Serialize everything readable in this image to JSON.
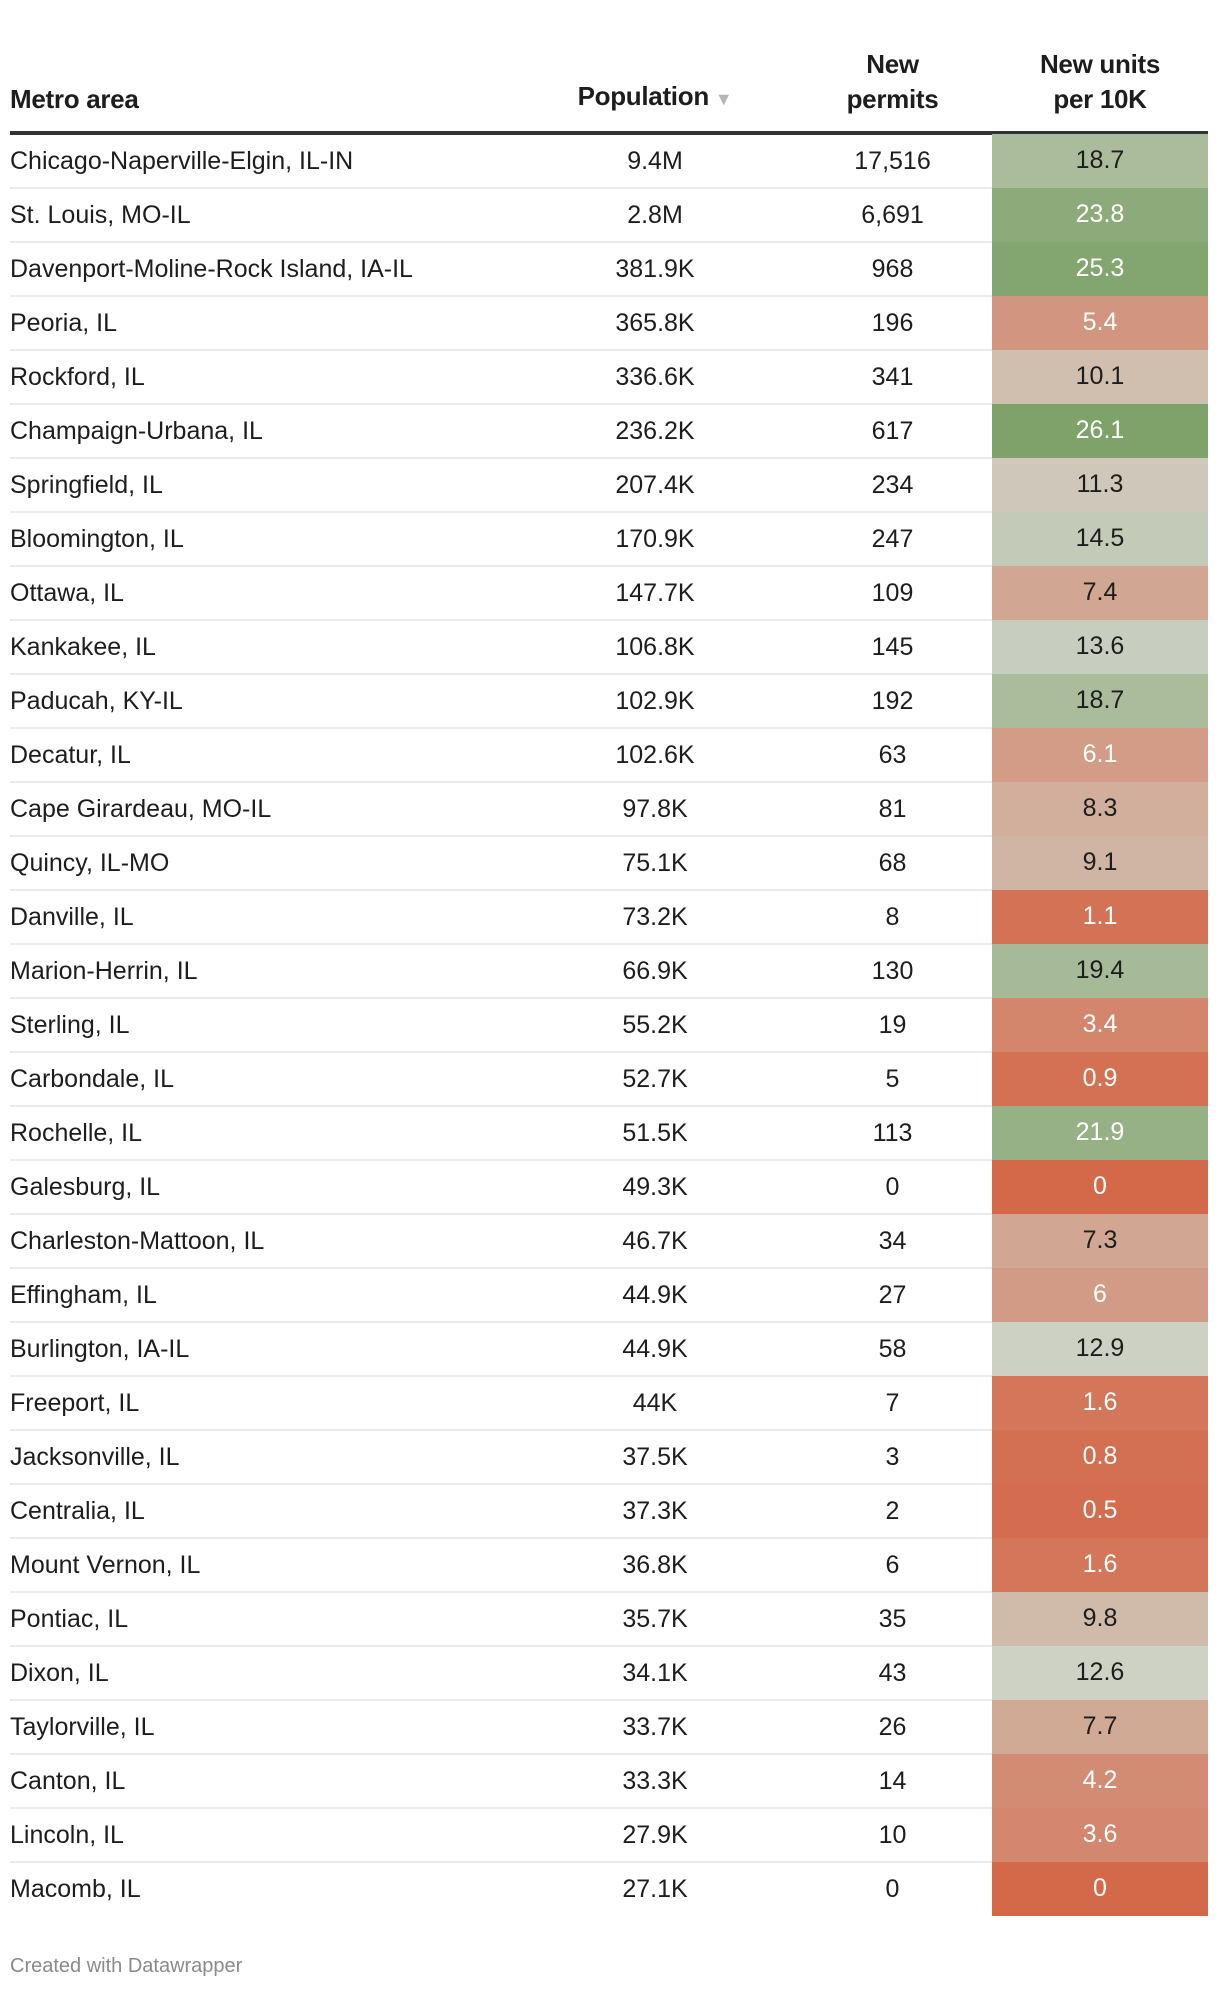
{
  "chart_data": {
    "type": "table",
    "columns": [
      "Metro area",
      "Population",
      "New permits",
      "New units per 10K"
    ],
    "header": {
      "metro": "Metro area",
      "population": "Population",
      "permits": "New permits",
      "units": "New units per 10K"
    },
    "sort": {
      "column": "Population",
      "direction": "descending",
      "icon": "sort-down-triangle"
    },
    "color_scale": {
      "column": "New units per 10K",
      "stops": [
        [
          0,
          "#d4694a"
        ],
        [
          12.5,
          "#cfd2c6"
        ],
        [
          26.1,
          "#7ea26a"
        ]
      ]
    },
    "rows": [
      {
        "metro": "Chicago-Naperville-Elgin, IL-IN",
        "population": "9.4M",
        "permits": "17,516",
        "units": "18.7"
      },
      {
        "metro": "St. Louis, MO-IL",
        "population": "2.8M",
        "permits": "6,691",
        "units": "23.8"
      },
      {
        "metro": "Davenport-Moline-Rock Island, IA-IL",
        "population": "381.9K",
        "permits": "968",
        "units": "25.3"
      },
      {
        "metro": "Peoria, IL",
        "population": "365.8K",
        "permits": "196",
        "units": "5.4"
      },
      {
        "metro": "Rockford, IL",
        "population": "336.6K",
        "permits": "341",
        "units": "10.1"
      },
      {
        "metro": "Champaign-Urbana, IL",
        "population": "236.2K",
        "permits": "617",
        "units": "26.1"
      },
      {
        "metro": "Springfield, IL",
        "population": "207.4K",
        "permits": "234",
        "units": "11.3"
      },
      {
        "metro": "Bloomington, IL",
        "population": "170.9K",
        "permits": "247",
        "units": "14.5"
      },
      {
        "metro": "Ottawa, IL",
        "population": "147.7K",
        "permits": "109",
        "units": "7.4"
      },
      {
        "metro": "Kankakee, IL",
        "population": "106.8K",
        "permits": "145",
        "units": "13.6"
      },
      {
        "metro": "Paducah, KY-IL",
        "population": "102.9K",
        "permits": "192",
        "units": "18.7"
      },
      {
        "metro": "Decatur, IL",
        "population": "102.6K",
        "permits": "63",
        "units": "6.1"
      },
      {
        "metro": "Cape Girardeau, MO-IL",
        "population": "97.8K",
        "permits": "81",
        "units": "8.3"
      },
      {
        "metro": "Quincy, IL-MO",
        "population": "75.1K",
        "permits": "68",
        "units": "9.1"
      },
      {
        "metro": "Danville, IL",
        "population": "73.2K",
        "permits": "8",
        "units": "1.1"
      },
      {
        "metro": "Marion-Herrin, IL",
        "population": "66.9K",
        "permits": "130",
        "units": "19.4"
      },
      {
        "metro": "Sterling, IL",
        "population": "55.2K",
        "permits": "19",
        "units": "3.4"
      },
      {
        "metro": "Carbondale, IL",
        "population": "52.7K",
        "permits": "5",
        "units": "0.9"
      },
      {
        "metro": "Rochelle, IL",
        "population": "51.5K",
        "permits": "113",
        "units": "21.9"
      },
      {
        "metro": "Galesburg, IL",
        "population": "49.3K",
        "permits": "0",
        "units": "0"
      },
      {
        "metro": "Charleston-Mattoon, IL",
        "population": "46.7K",
        "permits": "34",
        "units": "7.3"
      },
      {
        "metro": "Effingham, IL",
        "population": "44.9K",
        "permits": "27",
        "units": "6"
      },
      {
        "metro": "Burlington, IA-IL",
        "population": "44.9K",
        "permits": "58",
        "units": "12.9"
      },
      {
        "metro": "Freeport, IL",
        "population": "44K",
        "permits": "7",
        "units": "1.6"
      },
      {
        "metro": "Jacksonville, IL",
        "population": "37.5K",
        "permits": "3",
        "units": "0.8"
      },
      {
        "metro": "Centralia, IL",
        "population": "37.3K",
        "permits": "2",
        "units": "0.5"
      },
      {
        "metro": "Mount Vernon, IL",
        "population": "36.8K",
        "permits": "6",
        "units": "1.6"
      },
      {
        "metro": "Pontiac, IL",
        "population": "35.7K",
        "permits": "35",
        "units": "9.8"
      },
      {
        "metro": "Dixon, IL",
        "population": "34.1K",
        "permits": "43",
        "units": "12.6"
      },
      {
        "metro": "Taylorville, IL",
        "population": "33.7K",
        "permits": "26",
        "units": "7.7"
      },
      {
        "metro": "Canton, IL",
        "population": "33.3K",
        "permits": "14",
        "units": "4.2"
      },
      {
        "metro": "Lincoln, IL",
        "population": "27.9K",
        "permits": "10",
        "units": "3.6"
      },
      {
        "metro": "Macomb, IL",
        "population": "27.1K",
        "permits": "0",
        "units": "0"
      }
    ]
  },
  "footer": "Created with Datawrapper"
}
